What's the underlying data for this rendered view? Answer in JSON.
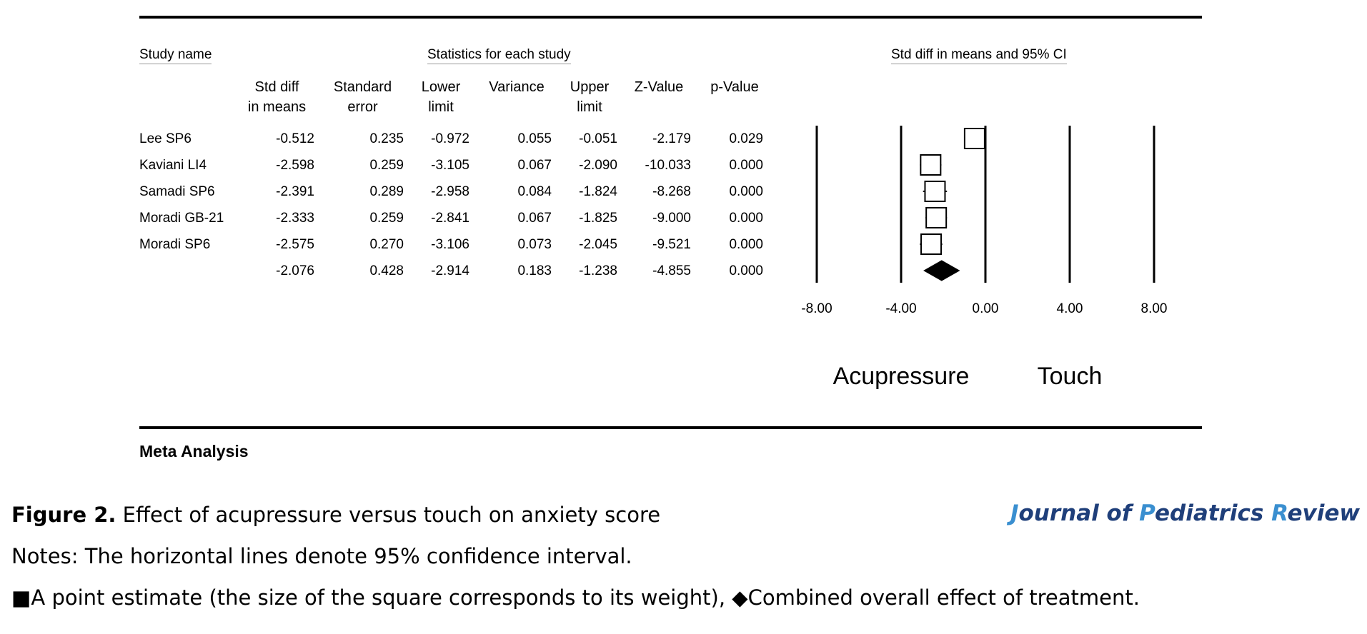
{
  "headers": {
    "study_name": "Study name",
    "statistics": "Statistics for each study",
    "ci": "Std diff in means and 95% CI"
  },
  "columns": [
    {
      "line1": "Std diff",
      "line2": "in means"
    },
    {
      "line1": "Standard",
      "line2": "error"
    },
    {
      "line1": "Lower",
      "line2": "limit"
    },
    {
      "line1": "",
      "line2": "Variance"
    },
    {
      "line1": "Upper",
      "line2": "limit"
    },
    {
      "line1": "",
      "line2": "Z-Value"
    },
    {
      "line1": "",
      "line2": "p-Value"
    }
  ],
  "rows": [
    {
      "name": "Lee SP6",
      "values": [
        "-0.512",
        "0.235",
        "-0.972",
        "0.055",
        "-0.051",
        "-2.179",
        "0.029"
      ]
    },
    {
      "name": "Kaviani  LI4",
      "values": [
        "-2.598",
        "0.259",
        "-3.105",
        "0.067",
        "-2.090",
        "-10.033",
        "0.000"
      ]
    },
    {
      "name": "Samadi SP6",
      "values": [
        "-2.391",
        "0.289",
        "-2.958",
        "0.084",
        "-1.824",
        "-8.268",
        "0.000"
      ]
    },
    {
      "name": "Moradi GB-21",
      "values": [
        "-2.333",
        "0.259",
        "-2.841",
        "0.067",
        "-1.825",
        "-9.000",
        "0.000"
      ]
    },
    {
      "name": "Moradi  SP6",
      "values": [
        "-2.575",
        "0.270",
        "-3.106",
        "0.073",
        "-2.045",
        "-9.521",
        "0.000"
      ]
    },
    {
      "name": "",
      "values": [
        "-2.076",
        "0.428",
        "-2.914",
        "0.183",
        "-1.238",
        "-4.855",
        "0.000"
      ]
    }
  ],
  "chart_data": {
    "type": "forest",
    "xlim": [
      -8,
      8
    ],
    "ticks": [
      -8,
      -4,
      0,
      4,
      8
    ],
    "tick_labels": [
      "-8.00",
      "-4.00",
      "0.00",
      "4.00",
      "8.00"
    ],
    "studies": [
      {
        "name": "Lee SP6",
        "estimate": -0.512,
        "lower": -0.972,
        "upper": -0.051
      },
      {
        "name": "Kaviani  LI4",
        "estimate": -2.598,
        "lower": -3.105,
        "upper": -2.09
      },
      {
        "name": "Samadi SP6",
        "estimate": -2.391,
        "lower": -2.958,
        "upper": -1.824
      },
      {
        "name": "Moradi GB-21",
        "estimate": -2.333,
        "lower": -2.841,
        "upper": -1.825
      },
      {
        "name": "Moradi  SP6",
        "estimate": -2.575,
        "lower": -3.106,
        "upper": -2.045
      }
    ],
    "summary": {
      "estimate": -2.076,
      "lower": -2.914,
      "upper": -1.238
    },
    "left_label": "Acupressure",
    "right_label": "Touch"
  },
  "footer_label": "Meta Analysis",
  "caption": {
    "figure_label": "Figure 2.",
    "figure_text": " Effect of acupressure versus touch on anxiety score",
    "notes": "Notes: The horizontal lines denote 95% confidence interval.",
    "legend_square": "■",
    "legend_square_text": "A point estimate (the size of the square corresponds to its weight), ",
    "legend_diamond": "◆",
    "legend_diamond_text": "Combined overall effect of treatment."
  },
  "journal": {
    "J": "J",
    "ournal_of": "ournal of ",
    "P": "P",
    "ediatrics": "ediatrics ",
    "R": "R",
    "eview": "eview",
    "dark_color": "#1f3f7a",
    "light_color": "#3a8fd0"
  }
}
